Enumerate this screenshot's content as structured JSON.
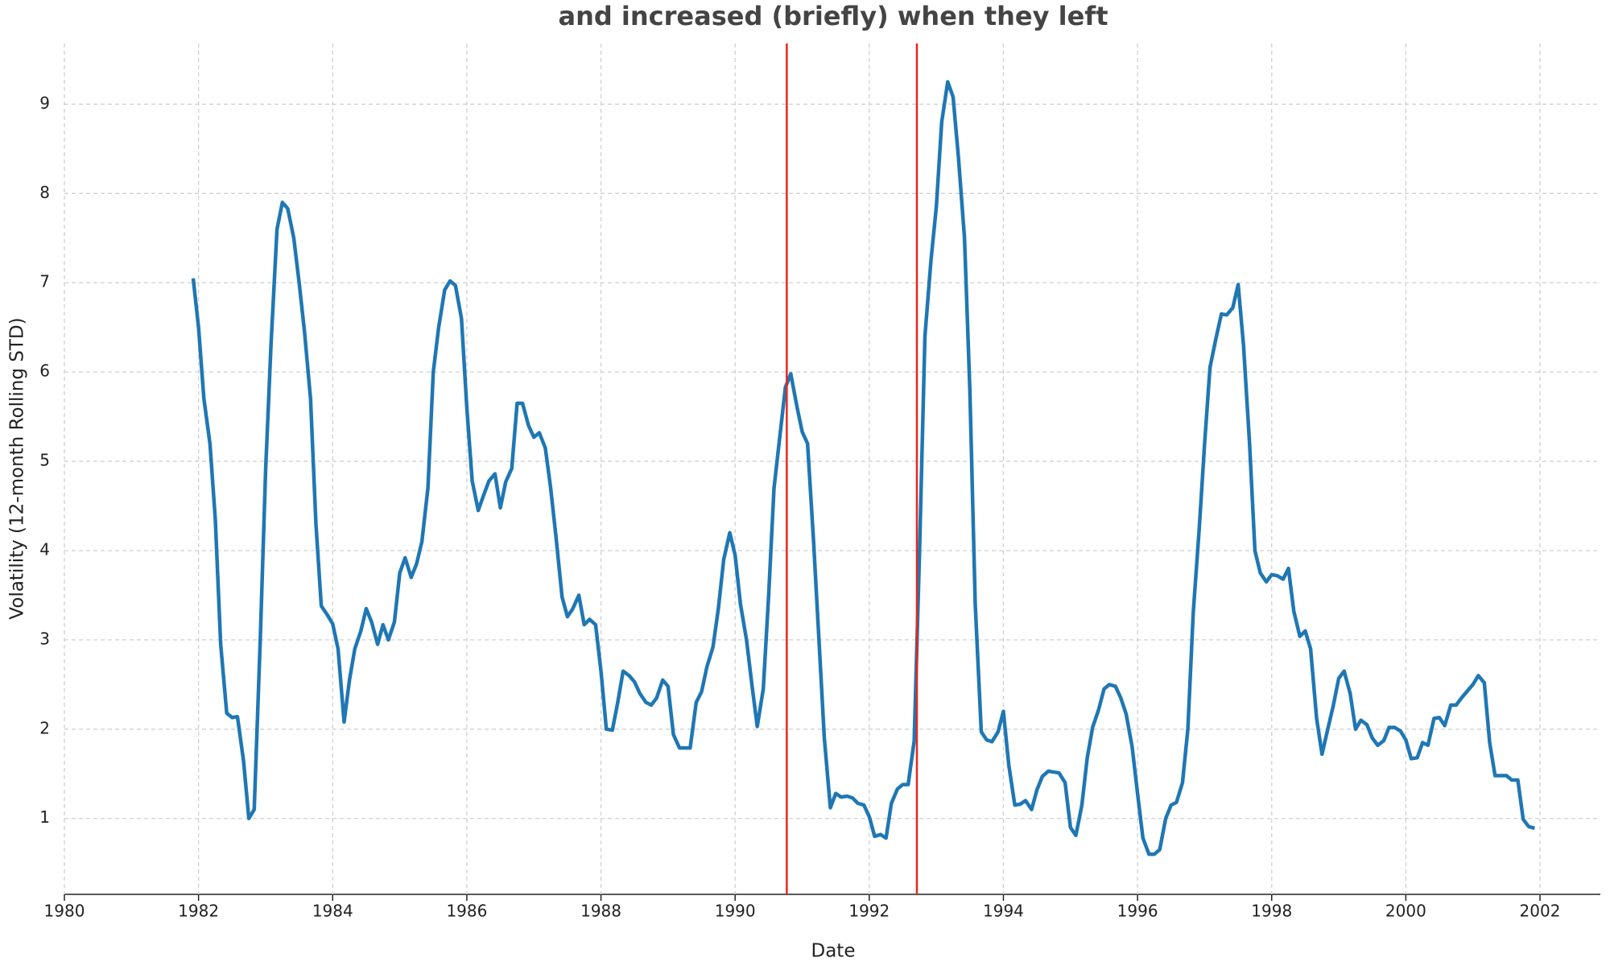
{
  "chart_data": {
    "type": "line",
    "title": "and increased (briefly) when they left",
    "x_label": "Date",
    "y_label": "Volatility (12-month Rolling STD)",
    "color": "#1f77b4",
    "grid": true,
    "xlim": [
      1980,
      2002.9
    ],
    "ylim": [
      0.15,
      9.68
    ],
    "xticks": [
      1980,
      1982,
      1984,
      1986,
      1988,
      1990,
      1992,
      1994,
      1996,
      1998,
      2000,
      2002
    ],
    "yticks": [
      1,
      2,
      3,
      4,
      5,
      6,
      7,
      8,
      9
    ],
    "vlines": {
      "x": [
        1990.77,
        1992.71
      ],
      "color": "#e8261c"
    },
    "x": [
      1981.92,
      1982.0,
      1982.08,
      1982.17,
      1982.25,
      1982.33,
      1982.42,
      1982.5,
      1982.58,
      1982.67,
      1982.75,
      1982.83,
      1982.92,
      1983.0,
      1983.08,
      1983.17,
      1983.25,
      1983.33,
      1983.42,
      1983.5,
      1983.58,
      1983.67,
      1983.75,
      1983.83,
      1983.92,
      1984.0,
      1984.08,
      1984.17,
      1984.25,
      1984.33,
      1984.42,
      1984.5,
      1984.58,
      1984.67,
      1984.75,
      1984.83,
      1984.92,
      1985.0,
      1985.08,
      1985.17,
      1985.25,
      1985.33,
      1985.42,
      1985.5,
      1985.58,
      1985.67,
      1985.75,
      1985.83,
      1985.92,
      1986.0,
      1986.08,
      1986.17,
      1986.25,
      1986.33,
      1986.42,
      1986.5,
      1986.58,
      1986.67,
      1986.75,
      1986.83,
      1986.92,
      1987.0,
      1987.08,
      1987.17,
      1987.25,
      1987.33,
      1987.42,
      1987.5,
      1987.58,
      1987.67,
      1987.75,
      1987.83,
      1987.92,
      1988.0,
      1988.08,
      1988.17,
      1988.25,
      1988.33,
      1988.42,
      1988.5,
      1988.58,
      1988.67,
      1988.75,
      1988.83,
      1988.92,
      1989.0,
      1989.08,
      1989.17,
      1989.25,
      1989.33,
      1989.42,
      1989.5,
      1989.58,
      1989.67,
      1989.75,
      1989.83,
      1989.92,
      1990.0,
      1990.08,
      1990.17,
      1990.25,
      1990.33,
      1990.42,
      1990.5,
      1990.58,
      1990.67,
      1990.75,
      1990.83,
      1990.92,
      1991.0,
      1991.08,
      1991.17,
      1991.25,
      1991.33,
      1991.42,
      1991.5,
      1991.58,
      1991.67,
      1991.75,
      1991.83,
      1991.92,
      1992.0,
      1992.08,
      1992.17,
      1992.25,
      1992.33,
      1992.42,
      1992.5,
      1992.58,
      1992.67,
      1992.75,
      1992.83,
      1992.92,
      1993.0,
      1993.08,
      1993.17,
      1993.25,
      1993.33,
      1993.42,
      1993.5,
      1993.58,
      1993.67,
      1993.75,
      1993.83,
      1993.92,
      1994.0,
      1994.08,
      1994.17,
      1994.25,
      1994.33,
      1994.42,
      1994.5,
      1994.58,
      1994.67,
      1994.75,
      1994.83,
      1994.92,
      1995.0,
      1995.08,
      1995.17,
      1995.25,
      1995.33,
      1995.42,
      1995.5,
      1995.58,
      1995.67,
      1995.75,
      1995.83,
      1995.92,
      1996.0,
      1996.08,
      1996.17,
      1996.25,
      1996.33,
      1996.42,
      1996.5,
      1996.58,
      1996.67,
      1996.75,
      1996.83,
      1996.92,
      1997.0,
      1997.08,
      1997.17,
      1997.25,
      1997.33,
      1997.42,
      1997.5,
      1997.58,
      1997.67,
      1997.75,
      1997.83,
      1997.92,
      1998.0,
      1998.08,
      1998.17,
      1998.25,
      1998.33,
      1998.42,
      1998.5,
      1998.58,
      1998.67,
      1998.75,
      1998.83,
      1998.92,
      1999.0,
      1999.08,
      1999.17,
      1999.25,
      1999.33,
      1999.42,
      1999.5,
      1999.58,
      1999.67,
      1999.75,
      1999.83,
      1999.92,
      2000.0,
      2000.08,
      2000.17,
      2000.25,
      2000.33,
      2000.42,
      2000.5,
      2000.58,
      2000.67,
      2000.75,
      2000.83,
      2000.92,
      2001.0,
      2001.08,
      2001.17,
      2001.25,
      2001.33,
      2001.42,
      2001.5,
      2001.58,
      2001.67,
      2001.75,
      2001.83,
      2001.92
    ],
    "values": [
      7.05,
      6.5,
      5.7,
      5.2,
      4.35,
      2.95,
      2.18,
      2.13,
      2.14,
      1.65,
      1.0,
      1.1,
      3.0,
      4.9,
      6.3,
      7.6,
      7.9,
      7.83,
      7.5,
      7.0,
      6.45,
      5.7,
      4.3,
      3.38,
      3.28,
      3.18,
      2.9,
      2.08,
      2.55,
      2.9,
      3.1,
      3.35,
      3.2,
      2.95,
      3.17,
      3.0,
      3.2,
      3.75,
      3.92,
      3.7,
      3.85,
      4.1,
      4.7,
      6.0,
      6.5,
      6.92,
      7.02,
      6.97,
      6.6,
      5.6,
      4.78,
      4.45,
      4.62,
      4.78,
      4.86,
      4.48,
      4.77,
      4.92,
      5.65,
      5.65,
      5.4,
      5.27,
      5.32,
      5.15,
      4.7,
      4.15,
      3.48,
      3.26,
      3.35,
      3.5,
      3.17,
      3.23,
      3.17,
      2.65,
      2.0,
      1.99,
      2.3,
      2.65,
      2.6,
      2.53,
      2.4,
      2.3,
      2.27,
      2.35,
      2.55,
      2.48,
      1.94,
      1.79,
      1.79,
      1.79,
      2.3,
      2.42,
      2.7,
      2.92,
      3.35,
      3.9,
      4.2,
      3.95,
      3.4,
      3.0,
      2.5,
      2.03,
      2.45,
      3.5,
      4.7,
      5.3,
      5.83,
      5.98,
      5.62,
      5.33,
      5.2,
      4.1,
      3.0,
      1.9,
      1.12,
      1.28,
      1.24,
      1.25,
      1.23,
      1.17,
      1.15,
      1.02,
      0.8,
      0.82,
      0.78,
      1.17,
      1.33,
      1.38,
      1.38,
      1.87,
      4.0,
      6.4,
      7.25,
      7.85,
      8.8,
      9.25,
      9.08,
      8.4,
      7.5,
      5.8,
      3.4,
      1.97,
      1.88,
      1.86,
      1.97,
      2.2,
      1.6,
      1.15,
      1.16,
      1.2,
      1.1,
      1.32,
      1.47,
      1.53,
      1.52,
      1.51,
      1.4,
      0.9,
      0.81,
      1.15,
      1.68,
      2.02,
      2.22,
      2.45,
      2.5,
      2.48,
      2.35,
      2.17,
      1.8,
      1.28,
      0.78,
      0.6,
      0.6,
      0.65,
      1.0,
      1.15,
      1.18,
      1.4,
      2.0,
      3.3,
      4.25,
      5.2,
      6.05,
      6.38,
      6.65,
      6.64,
      6.72,
      6.98,
      6.3,
      5.2,
      4.0,
      3.75,
      3.65,
      3.73,
      3.72,
      3.68,
      3.8,
      3.32,
      3.04,
      3.1,
      2.9,
      2.12,
      1.72,
      1.98,
      2.27,
      2.57,
      2.65,
      2.4,
      2.0,
      2.1,
      2.05,
      1.9,
      1.82,
      1.87,
      2.02,
      2.02,
      1.98,
      1.88,
      1.67,
      1.68,
      1.85,
      1.82,
      2.12,
      2.13,
      2.04,
      2.27,
      2.27,
      2.35,
      2.43,
      2.5,
      2.6,
      2.52,
      1.85,
      1.48,
      1.48,
      1.48,
      1.43,
      1.43,
      0.99,
      0.91,
      0.89
    ]
  }
}
